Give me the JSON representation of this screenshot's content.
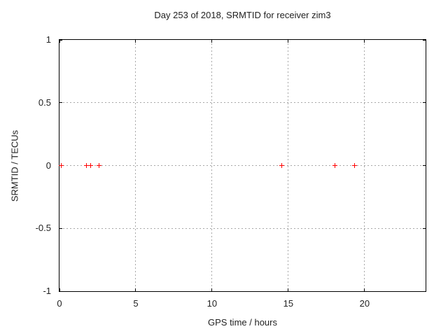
{
  "chart_data": {
    "type": "scatter",
    "title": "Day 253 of 2018, SRMTID for receiver zim3",
    "xlabel": "GPS time / hours",
    "ylabel": "SRMTID / TECUs",
    "xlim": [
      0,
      24
    ],
    "ylim": [
      -1,
      1
    ],
    "xticks": {
      "values": [
        0,
        5,
        10,
        15,
        20
      ],
      "labels": [
        "0",
        "5",
        "10",
        "15",
        "20"
      ]
    },
    "yticks": {
      "values": [
        1,
        0.5,
        0,
        -0.5,
        -1
      ],
      "labels": [
        "1",
        "0.5",
        "0",
        "-0.5",
        "-1"
      ]
    },
    "grid": true,
    "legend": false,
    "series": [
      {
        "marker": "plus",
        "color": "#ff0000",
        "x": [
          0.1,
          1.75,
          2.05,
          2.6,
          14.55,
          18.05,
          19.35
        ],
        "y": [
          0,
          0,
          0,
          0,
          0,
          0,
          0
        ]
      }
    ],
    "colors": {
      "background": "#ffffff",
      "border": "#000000",
      "grid": "#a8a8a8",
      "text": "#222222",
      "marker": "#ff0000"
    }
  }
}
